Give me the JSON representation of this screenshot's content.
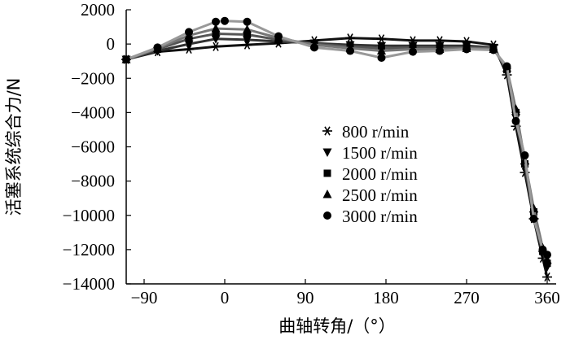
{
  "chart_data": {
    "type": "line",
    "title": "",
    "xlabel": "曲轴转角/（°）",
    "ylabel": "活塞系统综合力/N",
    "xlim": [
      -110,
      370
    ],
    "ylim": [
      -14000,
      2000
    ],
    "xticks": [
      -90,
      0,
      90,
      180,
      270,
      360
    ],
    "xtick_labels": [
      "−90",
      "0",
      "90",
      "180",
      "270",
      "360"
    ],
    "yticks": [
      2000,
      0,
      -2000,
      -4000,
      -6000,
      -8000,
      -10000,
      -12000,
      -14000
    ],
    "ytick_labels": [
      "2000",
      "0",
      "−2000",
      "−4000",
      "−6000",
      "−8000",
      "−10000",
      "−12000",
      "−14000"
    ],
    "legend_position": "center-right",
    "series": [
      {
        "name": "800 r/min",
        "marker": "star",
        "color": "#000000",
        "x": [
          -110,
          -75,
          -40,
          -10,
          25,
          60,
          100,
          140,
          175,
          210,
          240,
          270,
          300,
          315,
          325,
          335,
          345,
          355,
          360
        ],
        "y": [
          -900,
          -450,
          -300,
          -150,
          -50,
          50,
          200,
          350,
          300,
          200,
          200,
          150,
          -50,
          -1800,
          -4800,
          -7500,
          -10200,
          -12500,
          -13600
        ]
      },
      {
        "name": "1500 r/min",
        "marker": "triangle-down",
        "color": "#000000",
        "x": [
          -110,
          -75,
          -40,
          -10,
          25,
          60,
          100,
          140,
          175,
          210,
          240,
          270,
          300,
          315,
          325,
          335,
          345,
          355,
          360
        ],
        "y": [
          -900,
          -400,
          0,
          300,
          250,
          150,
          50,
          -50,
          -100,
          -100,
          -100,
          -100,
          -200,
          -1600,
          -4300,
          -7200,
          -10000,
          -12300,
          -13000
        ]
      },
      {
        "name": "2000 r/min",
        "marker": "square",
        "color": "#000000",
        "x": [
          -110,
          -75,
          -40,
          -10,
          25,
          60,
          100,
          140,
          175,
          210,
          240,
          270,
          300,
          315,
          325,
          335,
          345,
          355,
          360
        ],
        "y": [
          -900,
          -300,
          300,
          600,
          550,
          250,
          0,
          -150,
          -250,
          -200,
          -200,
          -200,
          -250,
          -1500,
          -4000,
          -7000,
          -9800,
          -12100,
          -12800
        ]
      },
      {
        "name": "2500 r/min",
        "marker": "triangle-up",
        "color": "#000000",
        "x": [
          -110,
          -75,
          -40,
          -10,
          25,
          60,
          100,
          140,
          175,
          210,
          240,
          270,
          300,
          315,
          325,
          335,
          345,
          355,
          360
        ],
        "y": [
          -900,
          -250,
          500,
          900,
          850,
          350,
          -50,
          -250,
          -400,
          -300,
          -300,
          -250,
          -300,
          -1400,
          -3800,
          -6800,
          -9600,
          -11900,
          -12600
        ]
      },
      {
        "name": "3000 r/min",
        "marker": "circle",
        "color": "#000000",
        "x": [
          -110,
          -75,
          -40,
          -10,
          0,
          25,
          60,
          100,
          140,
          175,
          210,
          240,
          270,
          300,
          315,
          325,
          335,
          345,
          355,
          360
        ],
        "y": [
          -900,
          -200,
          700,
          1300,
          1350,
          1300,
          450,
          -200,
          -400,
          -800,
          -450,
          -400,
          -300,
          -350,
          -1300,
          -4500,
          -6500,
          -10200,
          -12000,
          -12300
        ]
      }
    ]
  }
}
